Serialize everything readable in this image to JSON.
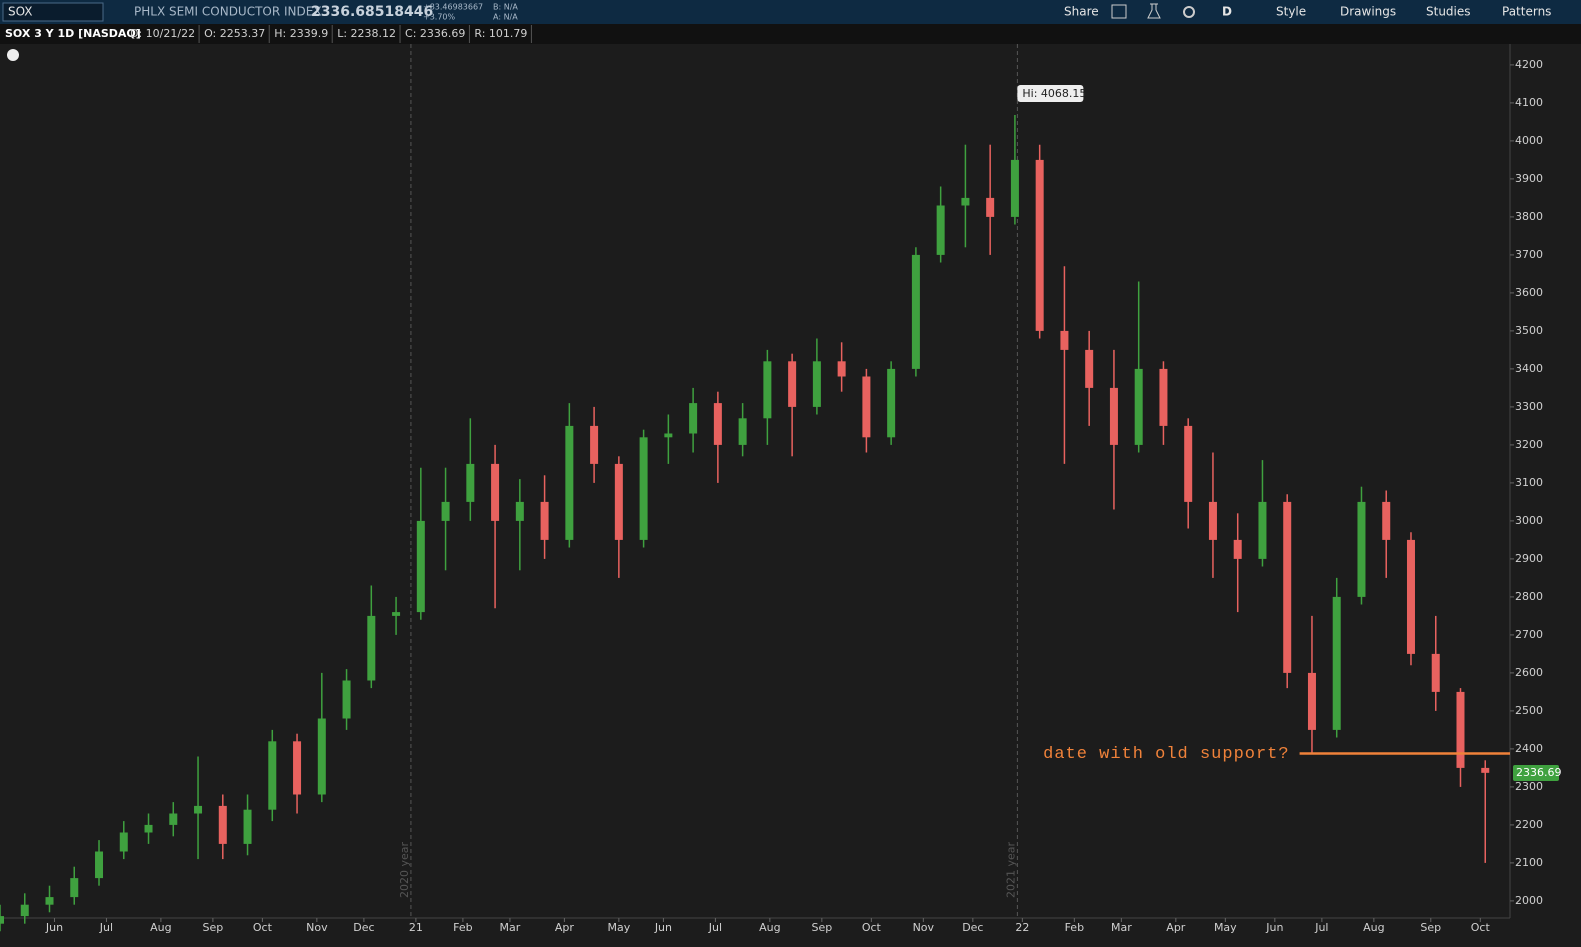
{
  "toolbar": {
    "symbol": "SOX",
    "description": "PHLX SEMI CONDUCTOR INDEX",
    "last": "2336.68518446",
    "change": "+83.46983667",
    "change_pct": "+3.70%",
    "bid": "B: N/A",
    "ask": "A: N/A",
    "buttons": [
      "Share",
      "D",
      "Style",
      "Drawings",
      "Studies",
      "Patterns"
    ]
  },
  "info_bar": {
    "title": "SOX 3 Y 1D [NASDAQ]",
    "fields": [
      "D: 10/21/22",
      "O: 2253.37",
      "H: 2339.9",
      "L: 2238.12",
      "C: 2336.69",
      "R: 101.79"
    ]
  },
  "chart_data": {
    "type": "candlestick",
    "x": [
      0,
      10,
      20,
      30,
      40,
      50,
      60,
      70,
      80,
      90,
      100,
      110,
      120,
      130,
      140,
      150,
      160,
      170,
      180,
      190,
      200,
      210,
      220,
      230,
      240,
      250,
      260,
      270,
      280,
      290,
      300,
      310,
      320,
      330,
      340,
      350,
      360,
      370,
      380,
      390,
      400,
      410,
      420,
      430,
      440,
      450,
      460,
      470,
      480,
      490,
      500,
      510,
      520,
      530,
      540,
      550,
      560,
      570,
      580,
      590,
      600
    ],
    "candles": [
      [
        1940,
        1990,
        1920,
        1960
      ],
      [
        1960,
        2020,
        1940,
        1990
      ],
      [
        1990,
        2040,
        1970,
        2010
      ],
      [
        2010,
        2090,
        1990,
        2060
      ],
      [
        2060,
        2160,
        2040,
        2130
      ],
      [
        2130,
        2210,
        2110,
        2180
      ],
      [
        2180,
        2230,
        2150,
        2200
      ],
      [
        2200,
        2260,
        2170,
        2230
      ],
      [
        2230,
        2380,
        2110,
        2250
      ],
      [
        2250,
        2280,
        2110,
        2150
      ],
      [
        2150,
        2280,
        2120,
        2240
      ],
      [
        2240,
        2450,
        2210,
        2420
      ],
      [
        2420,
        2440,
        2230,
        2280
      ],
      [
        2280,
        2600,
        2260,
        2480
      ],
      [
        2480,
        2610,
        2450,
        2580
      ],
      [
        2580,
        2830,
        2560,
        2750
      ],
      [
        2750,
        2800,
        2700,
        2760
      ],
      [
        2760,
        3140,
        2740,
        3000
      ],
      [
        3000,
        3140,
        2870,
        3050
      ],
      [
        3050,
        3270,
        3000,
        3150
      ],
      [
        3150,
        3200,
        2770,
        3000
      ],
      [
        3000,
        3110,
        2870,
        3050
      ],
      [
        3050,
        3120,
        2900,
        2950
      ],
      [
        2950,
        3310,
        2930,
        3250
      ],
      [
        3250,
        3300,
        3100,
        3150
      ],
      [
        3150,
        3170,
        2850,
        2950
      ],
      [
        2950,
        3240,
        2930,
        3220
      ],
      [
        3220,
        3280,
        3150,
        3230
      ],
      [
        3230,
        3350,
        3180,
        3310
      ],
      [
        3310,
        3340,
        3100,
        3200
      ],
      [
        3200,
        3310,
        3170,
        3270
      ],
      [
        3270,
        3450,
        3200,
        3420
      ],
      [
        3420,
        3440,
        3170,
        3300
      ],
      [
        3300,
        3480,
        3280,
        3420
      ],
      [
        3420,
        3470,
        3340,
        3380
      ],
      [
        3380,
        3400,
        3180,
        3220
      ],
      [
        3220,
        3420,
        3200,
        3400
      ],
      [
        3400,
        3720,
        3380,
        3700
      ],
      [
        3700,
        3880,
        3680,
        3830
      ],
      [
        3830,
        3990,
        3720,
        3850
      ],
      [
        3850,
        3990,
        3700,
        3800
      ],
      [
        3800,
        4068.15,
        3780,
        3950
      ],
      [
        3950,
        3990,
        3480,
        3500
      ],
      [
        3500,
        3670,
        3150,
        3450
      ],
      [
        3450,
        3500,
        3250,
        3350
      ],
      [
        3350,
        3450,
        3030,
        3200
      ],
      [
        3200,
        3630,
        3180,
        3400
      ],
      [
        3400,
        3420,
        3200,
        3250
      ],
      [
        3250,
        3270,
        2980,
        3050
      ],
      [
        3050,
        3180,
        2850,
        2950
      ],
      [
        2950,
        3020,
        2760,
        2900
      ],
      [
        2900,
        3160,
        2880,
        3050
      ],
      [
        3050,
        3070,
        2560,
        2600
      ],
      [
        2600,
        2750,
        2390,
        2450
      ],
      [
        2450,
        2850,
        2430,
        2800
      ],
      [
        2800,
        3090,
        2780,
        3050
      ],
      [
        3050,
        3080,
        2850,
        2950
      ],
      [
        2950,
        2970,
        2620,
        2650
      ],
      [
        2650,
        2750,
        2500,
        2550
      ],
      [
        2550,
        2560,
        2300,
        2350
      ],
      [
        2350,
        2370,
        2100,
        2337
      ]
    ],
    "up_color": "#3fa13f",
    "down_color": "#e8625f",
    "xlim": [
      0,
      610
    ],
    "xticks": [
      {
        "value": 22,
        "label": "Jun"
      },
      {
        "value": 43,
        "label": "Jul"
      },
      {
        "value": 65,
        "label": "Aug"
      },
      {
        "value": 86,
        "label": "Sep"
      },
      {
        "value": 106,
        "label": "Oct"
      },
      {
        "value": 128,
        "label": "Nov"
      },
      {
        "value": 147,
        "label": "Dec"
      },
      {
        "value": 168,
        "label": "21"
      },
      {
        "value": 187,
        "label": "Feb"
      },
      {
        "value": 206,
        "label": "Mar"
      },
      {
        "value": 228,
        "label": "Apr"
      },
      {
        "value": 250,
        "label": "May"
      },
      {
        "value": 268,
        "label": "Jun"
      },
      {
        "value": 289,
        "label": "Jul"
      },
      {
        "value": 311,
        "label": "Aug"
      },
      {
        "value": 332,
        "label": "Sep"
      },
      {
        "value": 352,
        "label": "Oct"
      },
      {
        "value": 373,
        "label": "Nov"
      },
      {
        "value": 393,
        "label": "Dec"
      },
      {
        "value": 413,
        "label": "22"
      },
      {
        "value": 434,
        "label": "Feb"
      },
      {
        "value": 453,
        "label": "Mar"
      },
      {
        "value": 475,
        "label": "Apr"
      },
      {
        "value": 495,
        "label": "May"
      },
      {
        "value": 515,
        "label": "Jun"
      },
      {
        "value": 534,
        "label": "Jul"
      },
      {
        "value": 555,
        "label": "Aug"
      },
      {
        "value": 578,
        "label": "Sep"
      },
      {
        "value": 598,
        "label": "Oct"
      }
    ],
    "ylim": [
      1955,
      4255
    ],
    "yticks": [
      2000,
      2100,
      2200,
      2300,
      2400,
      2500,
      2600,
      2700,
      2800,
      2900,
      3000,
      3100,
      3200,
      3300,
      3400,
      3500,
      3600,
      3700,
      3800,
      3900,
      4000,
      4100,
      4200
    ],
    "year_markers": [
      {
        "value": 166,
        "label": "2020 year"
      },
      {
        "value": 411,
        "label": "2021 year"
      }
    ],
    "high_label": {
      "x": 411,
      "value": 4068.15,
      "label": "Hi: 4068.15"
    },
    "last_price": {
      "value": 2336.69,
      "label": "2336.69"
    },
    "support": {
      "value": 2388,
      "x": [
        525,
        610
      ],
      "text": "date with old support?",
      "color": "#f0823a"
    }
  }
}
